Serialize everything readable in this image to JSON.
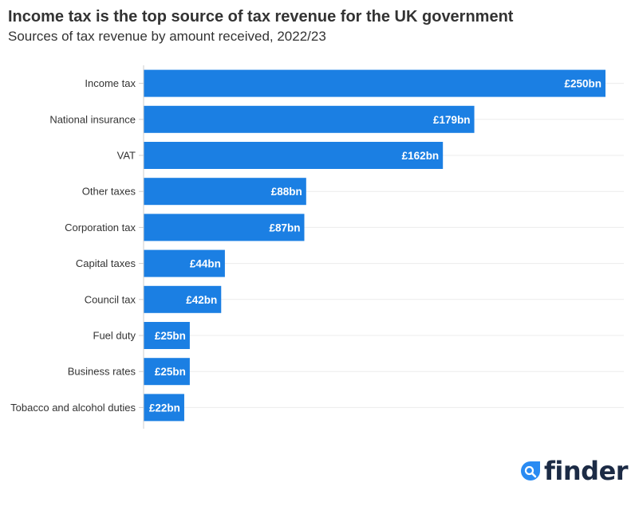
{
  "chart_data": {
    "type": "bar",
    "orientation": "horizontal",
    "title": "Income tax is the top source of tax revenue for the UK government",
    "subtitle": "Sources of tax revenue by amount received, 2022/23",
    "categories": [
      "Income tax",
      "National insurance",
      "VAT",
      "Other taxes",
      "Corporation tax",
      "Capital taxes",
      "Council tax",
      "Fuel duty",
      "Business rates",
      "Tobacco and alcohol duties"
    ],
    "values": [
      250,
      179,
      162,
      88,
      87,
      44,
      42,
      25,
      25,
      22
    ],
    "data_labels": [
      "£250bn",
      "£179bn",
      "£162bn",
      "£88bn",
      "£87bn",
      "£44bn",
      "£42bn",
      "£25bn",
      "£25bn",
      "£22bn"
    ],
    "unit": "£bn",
    "xlim": [
      0,
      250
    ],
    "grid": true,
    "bar_color": "#1b7fe3"
  },
  "logo": {
    "text": "finder",
    "color": "#1c2b45",
    "accent": "#2a8bf2",
    "icon": "search-icon"
  }
}
